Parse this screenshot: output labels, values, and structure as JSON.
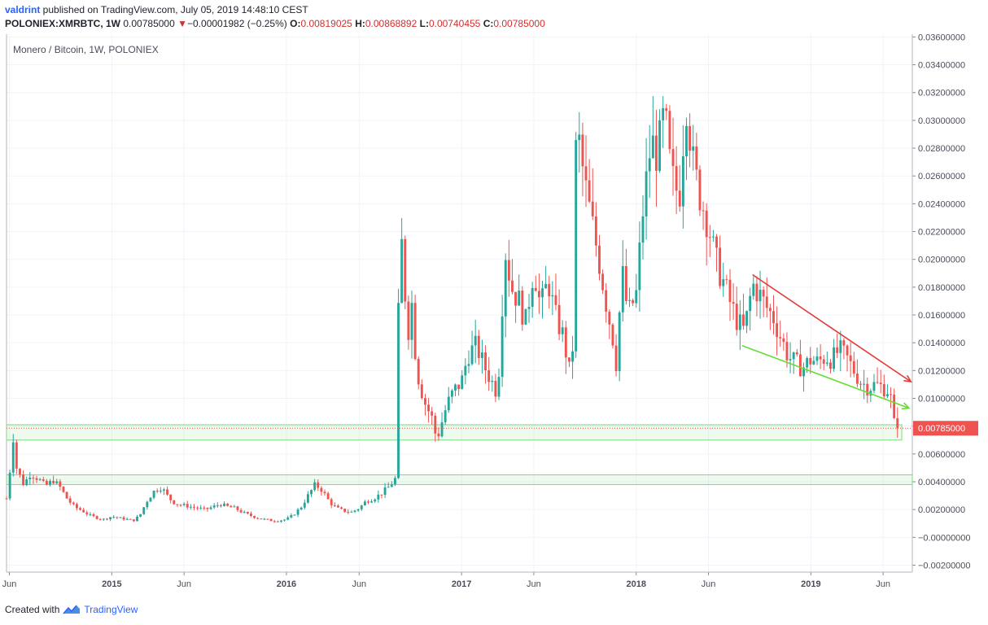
{
  "header": {
    "user": "valdrint",
    "published_text": " published on TradingView.com, July 05, 2019 14:48:10 CEST",
    "symbol": "POLONIEX:XMRBTC, 1W",
    "last": "0.00785000",
    "change_arrow": "▼",
    "change": "−0.00001982 (−0.25%)",
    "o_label": "O:",
    "o": "0.00819025",
    "h_label": "H:",
    "h": "0.00868892",
    "l_label": "L:",
    "l": "0.00740455",
    "c_label": "C:",
    "c": "0.00785000"
  },
  "footer": {
    "created_with": "Created with",
    "brand": "TradingView",
    "logo_icon": "tradingview-logo-icon"
  },
  "chart_data": {
    "type": "candlestick",
    "title": "Monero / Bitcoin, 1W, POLONIEX",
    "y_axis_side": "right",
    "ylim": [
      -0.0025,
      0.0362
    ],
    "y_ticks": [
      "0.03600000",
      "0.03400000",
      "0.03200000",
      "0.03000000",
      "0.02800000",
      "0.02600000",
      "0.02400000",
      "0.02200000",
      "0.02000000",
      "0.01800000",
      "0.01600000",
      "0.01400000",
      "0.01200000",
      "0.01000000",
      "0.00800000",
      "0.00600000",
      "0.00400000",
      "0.00200000",
      "−0.00000000",
      "−0.00200000"
    ],
    "x_ticks": [
      "Jun",
      "2015",
      "Jun",
      "2016",
      "Jun",
      "2017",
      "Jun",
      "2018",
      "Jun",
      "2019",
      "Jun"
    ],
    "x_tick_dates": [
      "2014-06-01",
      "2015-01-01",
      "2015-06-01",
      "2016-01-01",
      "2016-06-01",
      "2017-01-01",
      "2017-06-01",
      "2018-01-01",
      "2018-06-01",
      "2019-01-01",
      "2019-06-01"
    ],
    "x_range": [
      "2014-05-26",
      "2019-08-01"
    ],
    "grid": true,
    "last_price_label": "0.00785000",
    "colors": {
      "up": "#26a69a",
      "down": "#ef5350",
      "grid": "#f0f3fa",
      "axis": "#868993",
      "zone": "#7dd87d",
      "trend_upper": "#e53935",
      "trend_lower": "#66dd33"
    },
    "ohlc_points": [
      {
        "date": "2014-05-26",
        "close": 0.0028
      },
      {
        "date": "2014-06-02",
        "close": 0.0048
      },
      {
        "date": "2014-06-09",
        "close": 0.0072
      },
      {
        "date": "2014-06-16",
        "close": 0.005
      },
      {
        "date": "2014-07-01",
        "close": 0.0038
      },
      {
        "date": "2014-07-15",
        "close": 0.0046
      },
      {
        "date": "2014-08-01",
        "close": 0.0042
      },
      {
        "date": "2014-08-15",
        "close": 0.0037
      },
      {
        "date": "2014-09-01",
        "close": 0.0041
      },
      {
        "date": "2014-09-15",
        "close": 0.0036
      },
      {
        "date": "2014-10-01",
        "close": 0.0027
      },
      {
        "date": "2014-10-15",
        "close": 0.0022
      },
      {
        "date": "2014-11-01",
        "close": 0.0019
      },
      {
        "date": "2014-11-15",
        "close": 0.0016
      },
      {
        "date": "2014-12-01",
        "close": 0.0014
      },
      {
        "date": "2014-12-15",
        "close": 0.0013
      },
      {
        "date": "2015-01-01",
        "close": 0.0015
      },
      {
        "date": "2015-01-15",
        "close": 0.0014
      },
      {
        "date": "2015-02-01",
        "close": 0.0013
      },
      {
        "date": "2015-02-15",
        "close": 0.0012
      },
      {
        "date": "2015-03-01",
        "close": 0.0016
      },
      {
        "date": "2015-03-15",
        "close": 0.0026
      },
      {
        "date": "2015-04-01",
        "close": 0.0034
      },
      {
        "date": "2015-04-15",
        "close": 0.0036
      },
      {
        "date": "2015-05-01",
        "close": 0.0028
      },
      {
        "date": "2015-05-15",
        "close": 0.0024
      },
      {
        "date": "2015-06-01",
        "close": 0.0023
      },
      {
        "date": "2015-06-15",
        "close": 0.0022
      },
      {
        "date": "2015-07-01",
        "close": 0.0021
      },
      {
        "date": "2015-07-15",
        "close": 0.002
      },
      {
        "date": "2015-08-01",
        "close": 0.0022
      },
      {
        "date": "2015-08-15",
        "close": 0.0024
      },
      {
        "date": "2015-09-01",
        "close": 0.0022
      },
      {
        "date": "2015-09-15",
        "close": 0.0021
      },
      {
        "date": "2015-10-01",
        "close": 0.0018
      },
      {
        "date": "2015-10-15",
        "close": 0.0016
      },
      {
        "date": "2015-11-01",
        "close": 0.0014
      },
      {
        "date": "2015-11-15",
        "close": 0.0013
      },
      {
        "date": "2015-12-01",
        "close": 0.0012
      },
      {
        "date": "2015-12-15",
        "close": 0.0012
      },
      {
        "date": "2016-01-01",
        "close": 0.0013
      },
      {
        "date": "2016-01-15",
        "close": 0.0016
      },
      {
        "date": "2016-02-01",
        "close": 0.0022
      },
      {
        "date": "2016-02-15",
        "close": 0.003
      },
      {
        "date": "2016-03-01",
        "close": 0.0038
      },
      {
        "date": "2016-03-15",
        "close": 0.0034
      },
      {
        "date": "2016-04-01",
        "close": 0.0025
      },
      {
        "date": "2016-04-15",
        "close": 0.0021
      },
      {
        "date": "2016-05-01",
        "close": 0.0019
      },
      {
        "date": "2016-05-15",
        "close": 0.0018
      },
      {
        "date": "2016-06-01",
        "close": 0.0021
      },
      {
        "date": "2016-06-15",
        "close": 0.0026
      },
      {
        "date": "2016-07-01",
        "close": 0.0028
      },
      {
        "date": "2016-07-15",
        "close": 0.0031
      },
      {
        "date": "2016-08-01",
        "close": 0.0036
      },
      {
        "date": "2016-08-15",
        "close": 0.0042
      },
      {
        "date": "2016-08-22",
        "close": 0.016
      },
      {
        "date": "2016-08-29",
        "close": 0.021
      },
      {
        "date": "2016-09-05",
        "close": 0.0175
      },
      {
        "date": "2016-09-12",
        "close": 0.015
      },
      {
        "date": "2016-09-19",
        "close": 0.0168
      },
      {
        "date": "2016-09-26",
        "close": 0.0135
      },
      {
        "date": "2016-10-03",
        "close": 0.0115
      },
      {
        "date": "2016-10-15",
        "close": 0.0098
      },
      {
        "date": "2016-11-01",
        "close": 0.0085
      },
      {
        "date": "2016-11-10",
        "close": 0.007
      },
      {
        "date": "2016-11-20",
        "close": 0.0082
      },
      {
        "date": "2016-12-01",
        "close": 0.0095
      },
      {
        "date": "2016-12-15",
        "close": 0.0105
      },
      {
        "date": "2017-01-01",
        "close": 0.0112
      },
      {
        "date": "2017-01-15",
        "close": 0.0132
      },
      {
        "date": "2017-02-01",
        "close": 0.0138
      },
      {
        "date": "2017-02-15",
        "close": 0.0125
      },
      {
        "date": "2017-03-01",
        "close": 0.0115
      },
      {
        "date": "2017-03-15",
        "close": 0.0105
      },
      {
        "date": "2017-03-22",
        "close": 0.0128
      },
      {
        "date": "2017-04-01",
        "close": 0.021
      },
      {
        "date": "2017-04-15",
        "close": 0.018
      },
      {
        "date": "2017-05-01",
        "close": 0.017
      },
      {
        "date": "2017-05-15",
        "close": 0.0155
      },
      {
        "date": "2017-06-01",
        "close": 0.0195
      },
      {
        "date": "2017-06-15",
        "close": 0.0165
      },
      {
        "date": "2017-07-01",
        "close": 0.0185
      },
      {
        "date": "2017-07-15",
        "close": 0.016
      },
      {
        "date": "2017-08-01",
        "close": 0.0145
      },
      {
        "date": "2017-08-15",
        "close": 0.0118
      },
      {
        "date": "2017-08-22",
        "close": 0.014
      },
      {
        "date": "2017-08-29",
        "close": 0.03
      },
      {
        "date": "2017-09-05",
        "close": 0.028
      },
      {
        "date": "2017-09-15",
        "close": 0.0255
      },
      {
        "date": "2017-10-01",
        "close": 0.0225
      },
      {
        "date": "2017-10-15",
        "close": 0.02
      },
      {
        "date": "2017-11-01",
        "close": 0.0165
      },
      {
        "date": "2017-11-15",
        "close": 0.014
      },
      {
        "date": "2017-11-22",
        "close": 0.012
      },
      {
        "date": "2017-12-01",
        "close": 0.0195
      },
      {
        "date": "2017-12-15",
        "close": 0.016
      },
      {
        "date": "2018-01-01",
        "close": 0.0175
      },
      {
        "date": "2018-01-15",
        "close": 0.0235
      },
      {
        "date": "2018-02-01",
        "close": 0.0285
      },
      {
        "date": "2018-02-15",
        "close": 0.0275
      },
      {
        "date": "2018-03-01",
        "close": 0.0305
      },
      {
        "date": "2018-03-15",
        "close": 0.026
      },
      {
        "date": "2018-04-01",
        "close": 0.0245
      },
      {
        "date": "2018-04-15",
        "close": 0.0318
      },
      {
        "date": "2018-05-01",
        "close": 0.0265
      },
      {
        "date": "2018-05-15",
        "close": 0.0245
      },
      {
        "date": "2018-06-01",
        "close": 0.0225
      },
      {
        "date": "2018-06-15",
        "close": 0.02
      },
      {
        "date": "2018-07-01",
        "close": 0.0185
      },
      {
        "date": "2018-07-15",
        "close": 0.017
      },
      {
        "date": "2018-08-01",
        "close": 0.0155
      },
      {
        "date": "2018-08-15",
        "close": 0.0148
      },
      {
        "date": "2018-09-01",
        "close": 0.0182
      },
      {
        "date": "2018-09-15",
        "close": 0.0175
      },
      {
        "date": "2018-10-01",
        "close": 0.0165
      },
      {
        "date": "2018-10-15",
        "close": 0.0158
      },
      {
        "date": "2018-11-01",
        "close": 0.0142
      },
      {
        "date": "2018-11-15",
        "close": 0.013
      },
      {
        "date": "2018-12-01",
        "close": 0.0125
      },
      {
        "date": "2018-12-15",
        "close": 0.0122
      },
      {
        "date": "2019-01-01",
        "close": 0.0128
      },
      {
        "date": "2019-01-15",
        "close": 0.0126
      },
      {
        "date": "2019-02-01",
        "close": 0.013
      },
      {
        "date": "2019-02-15",
        "close": 0.0128
      },
      {
        "date": "2019-03-01",
        "close": 0.0135
      },
      {
        "date": "2019-03-15",
        "close": 0.013
      },
      {
        "date": "2019-04-01",
        "close": 0.012
      },
      {
        "date": "2019-04-15",
        "close": 0.0112
      },
      {
        "date": "2019-05-01",
        "close": 0.0108
      },
      {
        "date": "2019-05-15",
        "close": 0.011
      },
      {
        "date": "2019-06-01",
        "close": 0.0108
      },
      {
        "date": "2019-06-15",
        "close": 0.0105
      },
      {
        "date": "2019-06-24",
        "close": 0.0082
      },
      {
        "date": "2019-07-01",
        "close": 0.00785
      }
    ],
    "annotations": [
      {
        "type": "zone",
        "y_from": 0.007,
        "y_to": 0.0081,
        "x_from": "2014-05-26",
        "x_to": "2019-07-10"
      },
      {
        "type": "zone",
        "y_from": 0.0038,
        "y_to": 0.0045,
        "x_from": "2014-05-26",
        "x_to": "2019-08-01"
      },
      {
        "type": "trendline",
        "name": "upper",
        "from": {
          "date": "2018-09-01",
          "y": 0.0189
        },
        "to": {
          "date": "2019-07-29",
          "y": 0.0112
        }
      },
      {
        "type": "trendline",
        "name": "lower",
        "from": {
          "date": "2018-08-10",
          "y": 0.0138
        },
        "to": {
          "date": "2019-07-25",
          "y": 0.0093
        }
      }
    ]
  }
}
